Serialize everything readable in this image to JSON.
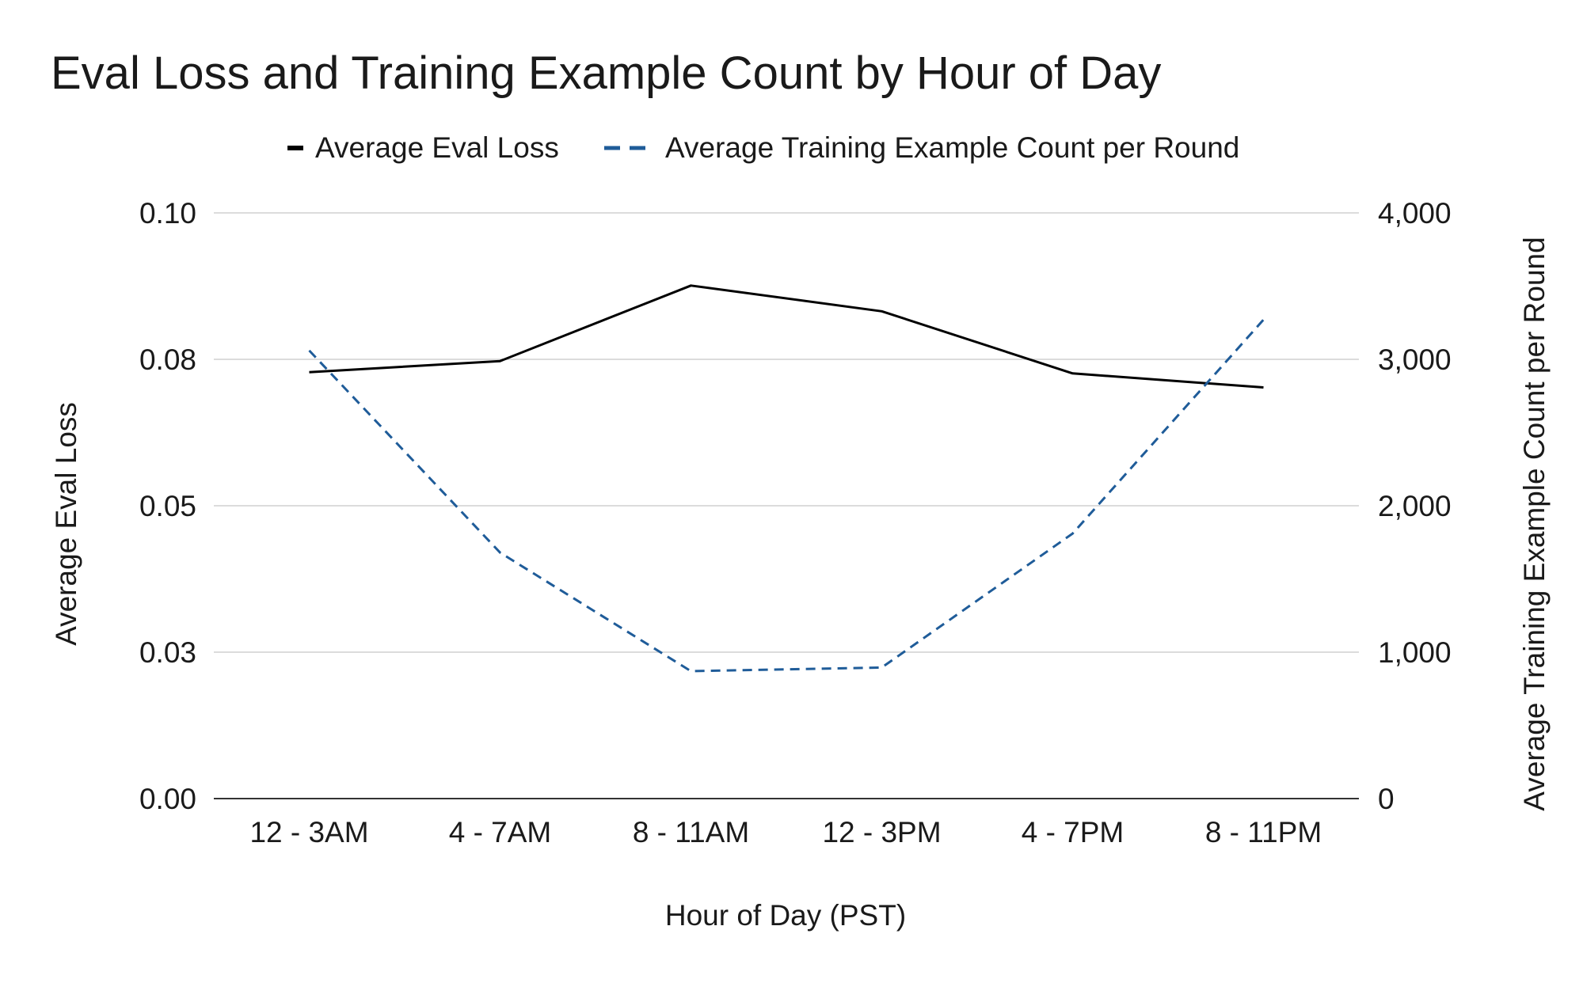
{
  "chart_data": {
    "type": "line",
    "title": "Eval Loss and Training Example Count by Hour of Day",
    "xlabel": "Hour of Day (PST)",
    "ylabel_left": "Average Eval Loss",
    "ylabel_right": "Average Training Example Count per Round",
    "categories": [
      "12 - 3AM",
      "4 - 7AM",
      "8 - 11AM",
      "12 - 3PM",
      "4 - 7PM",
      "8 - 11PM"
    ],
    "y_left": {
      "ylim": [
        0,
        0.1
      ],
      "ticks": [
        0,
        0.025,
        0.05,
        0.075,
        0.1
      ],
      "tick_labels": [
        "0.00",
        "0.03",
        "0.05",
        "0.08",
        "0.10"
      ]
    },
    "y_right": {
      "ylim": [
        0,
        4000
      ],
      "ticks": [
        0,
        1000,
        2000,
        3000,
        4000
      ],
      "tick_labels": [
        "0",
        "1,000",
        "2,000",
        "3,000",
        "4,000"
      ]
    },
    "series": [
      {
        "name": "Average Eval Loss",
        "axis": "left",
        "style": "solid",
        "color": "#000000",
        "values": [
          0.0728,
          0.0747,
          0.0876,
          0.0832,
          0.0726,
          0.0702
        ]
      },
      {
        "name": "Average Training Example Count per Round",
        "axis": "right",
        "style": "dashed",
        "color": "#1f5c99",
        "values": [
          3060,
          1680,
          870,
          895,
          1810,
          3270
        ]
      }
    ],
    "grid": true,
    "legend_position": "top-center"
  }
}
